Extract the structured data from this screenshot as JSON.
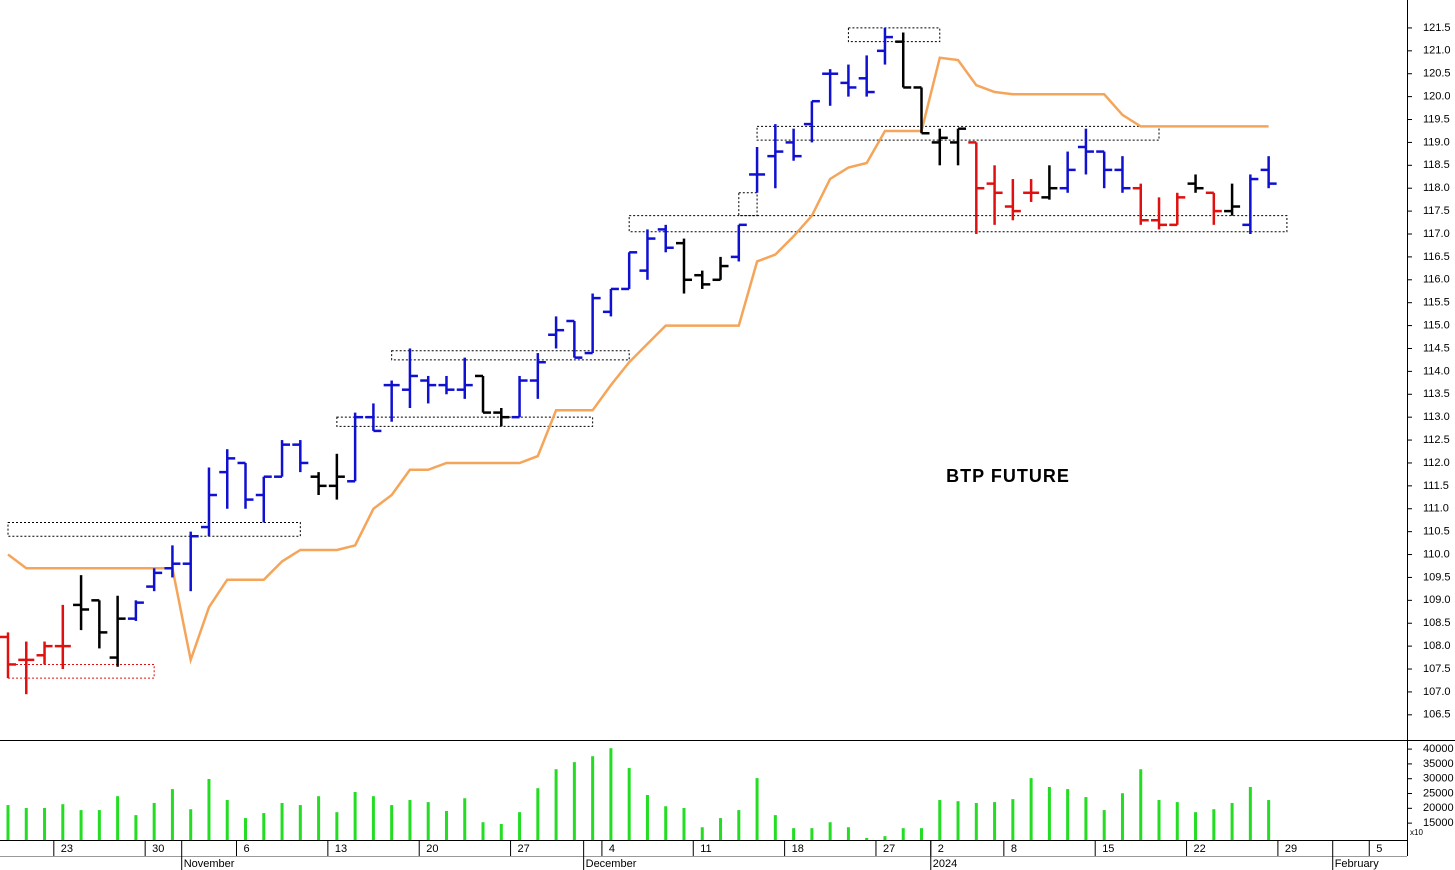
{
  "chart_data": [
    {
      "type": "ohlc",
      "title": "BTP FUTURE",
      "categories": [
        null,
        null,
        null,
        "23",
        null,
        null,
        null,
        null,
        "30",
        null,
        null,
        null,
        null,
        "6",
        null,
        null,
        null,
        null,
        "13",
        null,
        null,
        null,
        null,
        "20",
        null,
        null,
        null,
        null,
        "27",
        null,
        null,
        null,
        null,
        "4",
        null,
        null,
        null,
        null,
        "11",
        null,
        null,
        null,
        null,
        "18",
        null,
        null,
        null,
        null,
        "27",
        null,
        null,
        "2",
        null,
        null,
        null,
        "8",
        null,
        null,
        null,
        null,
        "15",
        null,
        null,
        null,
        null,
        "22",
        null,
        null,
        null,
        null,
        "29",
        null,
        null,
        null,
        null,
        "5",
        null
      ],
      "month_labels": [
        null,
        null,
        null,
        null,
        null,
        null,
        null,
        null,
        null,
        null,
        "November",
        null,
        null,
        null,
        null,
        null,
        null,
        null,
        null,
        null,
        null,
        null,
        null,
        null,
        null,
        null,
        null,
        null,
        null,
        null,
        null,
        null,
        "December",
        null,
        null,
        null,
        null,
        null,
        null,
        null,
        null,
        null,
        null,
        null,
        null,
        null,
        null,
        null,
        null,
        null,
        null,
        "2024",
        null,
        null,
        null,
        null,
        null,
        null,
        null,
        null,
        null,
        null,
        null,
        null,
        null,
        null,
        null,
        null,
        null,
        null,
        null,
        null,
        null,
        "February",
        null,
        null,
        null
      ],
      "open": [
        108.2,
        107.7,
        107.8,
        108.0,
        108.9,
        109.0,
        107.75,
        108.6,
        109.3,
        109.7,
        109.8,
        110.6,
        111.8,
        112.0,
        111.3,
        111.7,
        112.4,
        111.7,
        111.5,
        111.6,
        113.0,
        113.7,
        113.6,
        113.8,
        113.7,
        113.6,
        113.9,
        113.1,
        113.0,
        113.8,
        114.8,
        115.1,
        114.4,
        115.3,
        115.8,
        116.2,
        117.1,
        116.8,
        116.1,
        116.0,
        116.5,
        118.3,
        118.7,
        119.0,
        119.4,
        120.5,
        120.3,
        120.4,
        121.0,
        121.2,
        120.2,
        119.0,
        119.0,
        119.0,
        118.1,
        117.6,
        117.9,
        117.8,
        118.0,
        118.9,
        118.8,
        118.4,
        118.0,
        117.3,
        117.2,
        118.1,
        117.9,
        117.5,
        117.2,
        118.4,
        null,
        null,
        null,
        null,
        null,
        null,
        null
      ],
      "high": [
        108.3,
        108.1,
        108.1,
        108.9,
        109.55,
        109.0,
        109.1,
        109.0,
        109.7,
        110.2,
        110.5,
        111.9,
        112.3,
        112.0,
        111.7,
        112.5,
        112.5,
        111.8,
        112.2,
        113.1,
        113.3,
        113.8,
        114.5,
        113.9,
        113.9,
        114.3,
        113.9,
        113.2,
        113.9,
        114.4,
        115.2,
        115.1,
        115.7,
        115.8,
        116.6,
        117.1,
        117.2,
        116.9,
        116.2,
        116.5,
        117.2,
        118.9,
        119.4,
        119.3,
        119.9,
        120.6,
        120.7,
        120.9,
        121.5,
        121.4,
        120.2,
        119.3,
        119.3,
        119.0,
        118.5,
        118.2,
        118.2,
        118.5,
        118.8,
        119.3,
        118.8,
        118.7,
        118.1,
        117.8,
        117.9,
        118.3,
        117.9,
        118.1,
        118.3,
        118.7,
        null,
        null,
        null,
        null,
        null,
        null,
        null
      ],
      "low": [
        107.3,
        106.95,
        107.6,
        107.5,
        108.35,
        107.95,
        107.55,
        108.55,
        109.2,
        109.5,
        109.2,
        110.4,
        111.0,
        111.0,
        110.7,
        111.7,
        111.8,
        111.3,
        111.2,
        111.6,
        112.7,
        112.9,
        113.2,
        113.3,
        113.5,
        113.4,
        113.1,
        112.8,
        113.0,
        113.4,
        114.5,
        114.3,
        114.4,
        115.2,
        115.8,
        116.0,
        116.6,
        115.7,
        115.8,
        116.0,
        116.4,
        117.9,
        118.0,
        118.6,
        119.0,
        119.8,
        120.0,
        120.0,
        120.7,
        120.2,
        119.2,
        118.5,
        118.5,
        117.0,
        117.2,
        117.3,
        117.7,
        117.75,
        117.9,
        118.3,
        118.0,
        117.9,
        117.2,
        117.1,
        117.2,
        117.9,
        117.2,
        117.4,
        117.0,
        118.0,
        null,
        null,
        null,
        null,
        null,
        null,
        null
      ],
      "close": [
        107.6,
        107.7,
        108.0,
        108.0,
        108.8,
        108.3,
        108.6,
        108.95,
        109.6,
        109.8,
        110.4,
        111.3,
        112.1,
        111.2,
        111.7,
        112.4,
        112.0,
        111.5,
        111.7,
        113.0,
        112.7,
        113.7,
        113.9,
        113.7,
        113.6,
        113.7,
        113.1,
        113.0,
        113.8,
        114.2,
        114.9,
        114.3,
        115.6,
        115.8,
        116.6,
        116.9,
        116.7,
        116.0,
        115.9,
        116.3,
        117.2,
        118.3,
        118.8,
        118.7,
        119.9,
        120.5,
        120.2,
        120.1,
        121.3,
        120.2,
        119.2,
        119.1,
        119.3,
        118.0,
        117.9,
        117.5,
        117.9,
        118.0,
        118.4,
        118.8,
        118.4,
        118.0,
        117.3,
        117.2,
        117.8,
        118.0,
        117.5,
        117.6,
        118.2,
        118.1,
        null,
        null,
        null,
        null,
        null,
        null,
        null
      ],
      "bar_colors": [
        "#e01010",
        "#e01010",
        "#e01010",
        "#e01010",
        "#000000",
        "#000000",
        "#000000",
        "#1010d0",
        "#1010d0",
        "#1010d0",
        "#1010d0",
        "#1010d0",
        "#1010d0",
        "#1010d0",
        "#1010d0",
        "#1010d0",
        "#1010d0",
        "#000000",
        "#000000",
        "#1010d0",
        "#1010d0",
        "#1010d0",
        "#1010d0",
        "#1010d0",
        "#1010d0",
        "#1010d0",
        "#000000",
        "#000000",
        "#1010d0",
        "#1010d0",
        "#1010d0",
        "#1010d0",
        "#1010d0",
        "#1010d0",
        "#1010d0",
        "#1010d0",
        "#1010d0",
        "#000000",
        "#000000",
        "#000000",
        "#1010d0",
        "#1010d0",
        "#1010d0",
        "#1010d0",
        "#1010d0",
        "#1010d0",
        "#1010d0",
        "#1010d0",
        "#1010d0",
        "#000000",
        "#000000",
        "#000000",
        "#000000",
        "#e01010",
        "#e01010",
        "#e01010",
        "#e01010",
        "#000000",
        "#1010d0",
        "#1010d0",
        "#1010d0",
        "#1010d0",
        "#e01010",
        "#e01010",
        "#e01010",
        "#000000",
        "#e01010",
        "#000000",
        "#1010d0",
        "#1010d0",
        null,
        null,
        null,
        null,
        null,
        null,
        null
      ],
      "line": {
        "color": "#f5a55a",
        "values": [
          110.0,
          109.7,
          109.7,
          109.7,
          109.7,
          109.7,
          109.7,
          109.7,
          109.7,
          109.7,
          107.7,
          108.85,
          109.45,
          109.45,
          109.45,
          109.85,
          110.1,
          110.1,
          110.1,
          110.2,
          111.0,
          111.3,
          111.85,
          111.85,
          112.0,
          112.0,
          112.0,
          112.0,
          112.0,
          112.15,
          113.15,
          113.15,
          113.15,
          113.7,
          114.2,
          114.6,
          115.0,
          115.0,
          115.0,
          115.0,
          115.0,
          116.4,
          116.55,
          116.95,
          117.4,
          118.2,
          118.45,
          118.55,
          119.25,
          119.25,
          119.25,
          120.85,
          120.8,
          120.25,
          120.1,
          120.05,
          120.05,
          120.05,
          120.05,
          120.05,
          120.05,
          119.6,
          119.35,
          119.35,
          119.35,
          119.35,
          119.35,
          119.35,
          119.35,
          119.35,
          null,
          null,
          null,
          null,
          null,
          null,
          null
        ]
      },
      "boxes": [
        {
          "start": 0,
          "end": 16,
          "low": 110.4,
          "high": 110.7,
          "color": "#000000"
        },
        {
          "start": 0,
          "end": 8,
          "low": 107.3,
          "high": 107.6,
          "color": "#e01010"
        },
        {
          "start": 18,
          "end": 32,
          "low": 112.8,
          "high": 113.0,
          "color": "#000000"
        },
        {
          "start": 21,
          "end": 34,
          "low": 114.25,
          "high": 114.45,
          "color": "#000000"
        },
        {
          "start": 34,
          "end": 70,
          "low": 117.05,
          "high": 117.4,
          "color": "#000000"
        },
        {
          "start": 40,
          "end": 41,
          "low": 117.4,
          "high": 117.9,
          "color": "#000000"
        },
        {
          "start": 41,
          "end": 63,
          "low": 119.05,
          "high": 119.35,
          "color": "#000000"
        },
        {
          "start": 46,
          "end": 51,
          "low": 121.2,
          "high": 121.5,
          "color": "#000000"
        }
      ],
      "ylim": [
        105.95,
        122.11
      ],
      "yticks": [
        106.5,
        {
          "value": 107,
          "label": "107.0"
        },
        107.5,
        {
          "value": 108,
          "label": "108.0"
        },
        108.5,
        {
          "value": 109,
          "label": "109.0"
        },
        109.5,
        {
          "value": 110,
          "label": "110.0"
        },
        110.5,
        {
          "value": 111,
          "label": "111.0"
        },
        111.5,
        {
          "value": 112,
          "label": "112.0"
        },
        112.5,
        {
          "value": 113,
          "label": "113.0"
        },
        113.5,
        {
          "value": 114,
          "label": "114.0"
        },
        114.5,
        {
          "value": 115,
          "label": "115.0"
        },
        115.5,
        {
          "value": 116,
          "label": "116.0"
        },
        116.5,
        {
          "value": 117,
          "label": "117.0"
        },
        117.5,
        {
          "value": 118,
          "label": "118.0"
        },
        118.5,
        {
          "value": 119,
          "label": "119.0"
        },
        119.5,
        {
          "value": 120,
          "label": "120.0"
        },
        120.5,
        {
          "value": 121,
          "label": "121.0"
        },
        121.5
      ]
    },
    {
      "type": "bar",
      "color": "#22dd22",
      "axis_note": "x10",
      "values": [
        21100,
        20100,
        20100,
        21400,
        19400,
        19400,
        24100,
        17700,
        21800,
        26500,
        19700,
        29900,
        22800,
        16700,
        18400,
        21800,
        21100,
        24100,
        18700,
        25500,
        24100,
        21100,
        22800,
        22100,
        19100,
        23400,
        15300,
        14700,
        18700,
        26800,
        33200,
        35600,
        37600,
        40300,
        33600,
        24500,
        20700,
        20100,
        13600,
        16700,
        19400,
        30200,
        17700,
        13300,
        13300,
        15300,
        13600,
        10000,
        10600,
        13300,
        13300,
        22800,
        22400,
        21800,
        22100,
        23100,
        30200,
        27200,
        26500,
        23800,
        19400,
        25100,
        33200,
        22800,
        22100,
        18700,
        19700,
        21800,
        27200,
        22800,
        null,
        null,
        null,
        null,
        null,
        null,
        null
      ],
      "ylim": [
        9300,
        42400
      ],
      "yticks": [
        15000,
        20000,
        25000,
        30000,
        35000,
        40000
      ]
    }
  ]
}
